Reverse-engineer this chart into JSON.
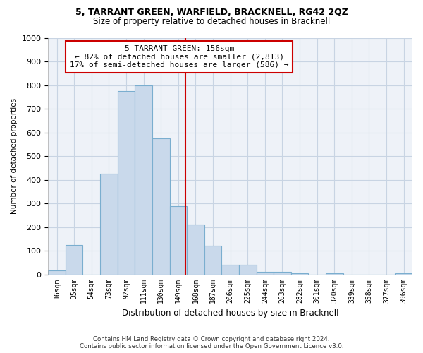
{
  "title1": "5, TARRANT GREEN, WARFIELD, BRACKNELL, RG42 2QZ",
  "title2": "Size of property relative to detached houses in Bracknell",
  "xlabel": "Distribution of detached houses by size in Bracknell",
  "ylabel": "Number of detached properties",
  "categories": [
    "16sqm",
    "35sqm",
    "54sqm",
    "73sqm",
    "92sqm",
    "111sqm",
    "130sqm",
    "149sqm",
    "168sqm",
    "187sqm",
    "206sqm",
    "225sqm",
    "244sqm",
    "263sqm",
    "282sqm",
    "301sqm",
    "320sqm",
    "339sqm",
    "358sqm",
    "377sqm",
    "396sqm"
  ],
  "values": [
    16,
    125,
    0,
    425,
    775,
    800,
    575,
    290,
    210,
    120,
    40,
    40,
    12,
    10,
    5,
    0,
    5,
    0,
    0,
    0,
    5
  ],
  "bar_color": "#c9d9eb",
  "bar_edge_color": "#7aaecf",
  "grid_color": "#c8d4e3",
  "vline_x_index": 7.42,
  "vline_color": "#cc0000",
  "annotation_text": "5 TARRANT GREEN: 156sqm\n← 82% of detached houses are smaller (2,813)\n17% of semi-detached houses are larger (586) →",
  "annotation_box_color": "#cc0000",
  "ylim": [
    0,
    1000
  ],
  "yticks": [
    0,
    100,
    200,
    300,
    400,
    500,
    600,
    700,
    800,
    900,
    1000
  ],
  "footer1": "Contains HM Land Registry data © Crown copyright and database right 2024.",
  "footer2": "Contains public sector information licensed under the Open Government Licence v3.0.",
  "background_color": "#eef2f8"
}
